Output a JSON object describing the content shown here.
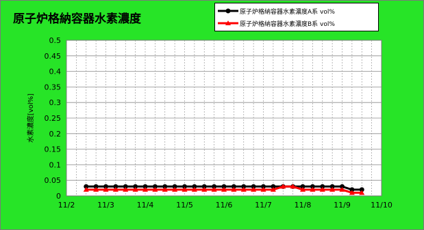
{
  "chart_data": {
    "type": "line",
    "title": "原子炉格納容器水素濃度",
    "ylabel": "水素濃度[vol%]",
    "xlabel": "",
    "ylim": [
      0,
      0.5
    ],
    "yticks": [
      "0",
      "0.05",
      "0.1",
      "0.15",
      "0.2",
      "0.25",
      "0.3",
      "0.35",
      "0.4",
      "0.45",
      "0.5"
    ],
    "xlim": [
      "11/2",
      "11/10"
    ],
    "xticks": [
      "11/2",
      "11/3",
      "11/4",
      "11/5",
      "11/6",
      "11/7",
      "11/8",
      "11/9",
      "11/10"
    ],
    "grid": true,
    "legend_position": "top-right",
    "series": [
      {
        "name": "原子炉格納容器水素濃度A系 vol%",
        "color": "#000000",
        "marker": "circle",
        "x": [
          "11/2 12:00",
          "11/2 18:00",
          "11/3 00:00",
          "11/3 06:00",
          "11/3 12:00",
          "11/3 18:00",
          "11/4 00:00",
          "11/4 06:00",
          "11/4 12:00",
          "11/4 18:00",
          "11/5 00:00",
          "11/5 06:00",
          "11/5 12:00",
          "11/5 18:00",
          "11/6 00:00",
          "11/6 06:00",
          "11/6 12:00",
          "11/6 18:00",
          "11/7 00:00",
          "11/7 06:00",
          "11/7 12:00",
          "11/7 18:00",
          "11/8 00:00",
          "11/8 06:00",
          "11/8 12:00",
          "11/8 18:00",
          "11/9 00:00",
          "11/9 06:00",
          "11/9 12:00"
        ],
        "values": [
          0.03,
          0.03,
          0.03,
          0.03,
          0.03,
          0.03,
          0.03,
          0.03,
          0.03,
          0.03,
          0.03,
          0.03,
          0.03,
          0.03,
          0.03,
          0.03,
          0.03,
          0.03,
          0.03,
          0.03,
          0.03,
          0.03,
          0.03,
          0.03,
          0.03,
          0.03,
          0.03,
          0.02,
          0.02
        ]
      },
      {
        "name": "原子炉格納容器水素濃度B系 vol%",
        "color": "#ff0000",
        "marker": "triangle",
        "x": [
          "11/2 12:00",
          "11/2 18:00",
          "11/3 00:00",
          "11/3 06:00",
          "11/3 12:00",
          "11/3 18:00",
          "11/4 00:00",
          "11/4 06:00",
          "11/4 12:00",
          "11/4 18:00",
          "11/5 00:00",
          "11/5 06:00",
          "11/5 12:00",
          "11/5 18:00",
          "11/6 00:00",
          "11/6 06:00",
          "11/6 12:00",
          "11/6 18:00",
          "11/7 00:00",
          "11/7 06:00",
          "11/7 12:00",
          "11/7 18:00",
          "11/8 00:00",
          "11/8 06:00",
          "11/8 12:00",
          "11/8 18:00",
          "11/9 00:00",
          "11/9 06:00",
          "11/9 12:00"
        ],
        "values": [
          0.02,
          0.02,
          0.02,
          0.02,
          0.02,
          0.02,
          0.02,
          0.02,
          0.02,
          0.02,
          0.02,
          0.02,
          0.02,
          0.02,
          0.02,
          0.02,
          0.02,
          0.02,
          0.02,
          0.02,
          0.03,
          0.03,
          0.02,
          0.02,
          0.02,
          0.02,
          0.02,
          0.01,
          0.01
        ]
      }
    ]
  }
}
